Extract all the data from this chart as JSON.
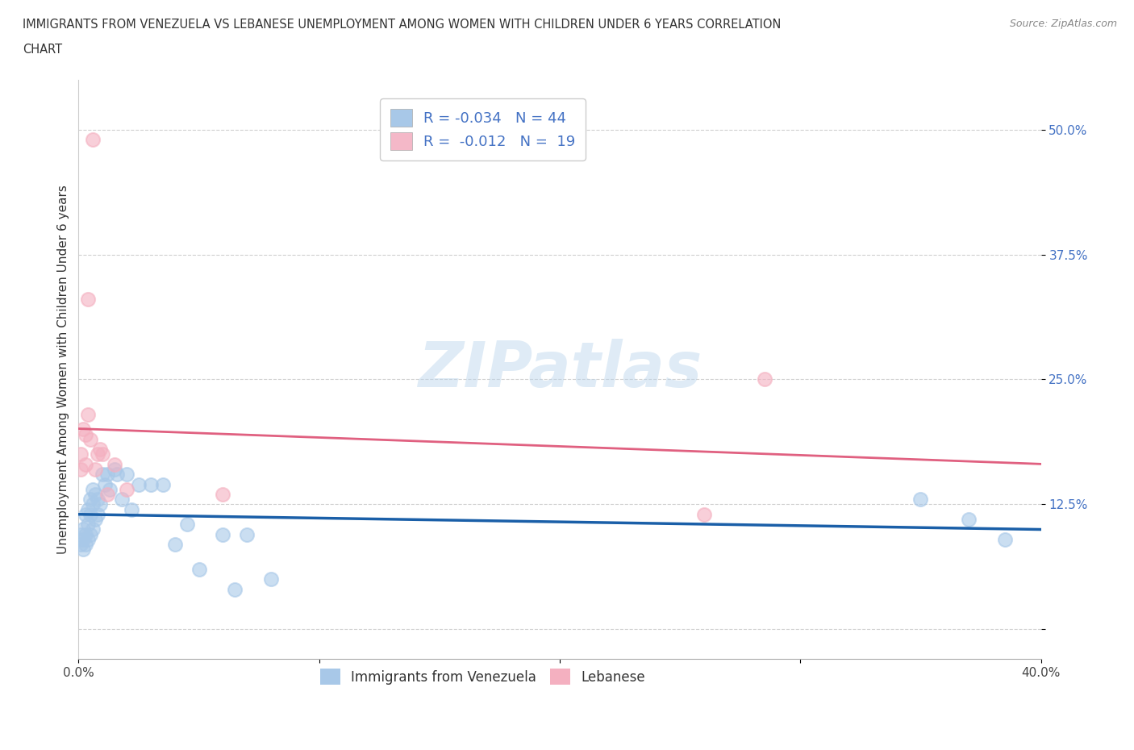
{
  "title_line1": "IMMIGRANTS FROM VENEZUELA VS LEBANESE UNEMPLOYMENT AMONG WOMEN WITH CHILDREN UNDER 6 YEARS CORRELATION",
  "title_line2": "CHART",
  "source": "Source: ZipAtlas.com",
  "ylabel": "Unemployment Among Women with Children Under 6 years",
  "xlim": [
    0.0,
    0.4
  ],
  "ylim": [
    -0.03,
    0.55
  ],
  "xticks": [
    0.0,
    0.1,
    0.2,
    0.3,
    0.4
  ],
  "xticklabels_ends": [
    "0.0%",
    "",
    "",
    "",
    "40.0%"
  ],
  "yticks": [
    0.0,
    0.125,
    0.25,
    0.375,
    0.5
  ],
  "yticklabels": [
    "",
    "12.5%",
    "25.0%",
    "37.5%",
    "50.0%"
  ],
  "legend1_label": "R = -0.034   N = 44",
  "legend2_label": "R =  -0.012   N =  19",
  "legend_color1": "#a8c8e8",
  "legend_color2": "#f4b8c8",
  "dot_color_blue": "#a8c8e8",
  "dot_color_pink": "#f4b0c0",
  "line_color_blue": "#1a5fa8",
  "line_color_pink": "#e06080",
  "grid_color": "#d0d0d0",
  "watermark": "ZIPatlas",
  "venezuelan_x": [
    0.001,
    0.001,
    0.002,
    0.002,
    0.002,
    0.003,
    0.003,
    0.003,
    0.004,
    0.004,
    0.004,
    0.005,
    0.005,
    0.005,
    0.006,
    0.006,
    0.006,
    0.007,
    0.007,
    0.008,
    0.008,
    0.009,
    0.01,
    0.011,
    0.012,
    0.013,
    0.015,
    0.016,
    0.018,
    0.02,
    0.022,
    0.025,
    0.03,
    0.035,
    0.04,
    0.045,
    0.05,
    0.06,
    0.065,
    0.07,
    0.08,
    0.35,
    0.37,
    0.385
  ],
  "venezuelan_y": [
    0.095,
    0.085,
    0.1,
    0.09,
    0.08,
    0.115,
    0.095,
    0.085,
    0.12,
    0.105,
    0.09,
    0.13,
    0.115,
    0.095,
    0.14,
    0.125,
    0.1,
    0.135,
    0.11,
    0.13,
    0.115,
    0.125,
    0.155,
    0.145,
    0.155,
    0.14,
    0.16,
    0.155,
    0.13,
    0.155,
    0.12,
    0.145,
    0.145,
    0.145,
    0.085,
    0.105,
    0.06,
    0.095,
    0.04,
    0.095,
    0.05,
    0.13,
    0.11,
    0.09
  ],
  "lebanese_x": [
    0.001,
    0.001,
    0.002,
    0.003,
    0.003,
    0.004,
    0.004,
    0.005,
    0.006,
    0.007,
    0.008,
    0.009,
    0.01,
    0.012,
    0.015,
    0.02,
    0.06,
    0.26,
    0.285
  ],
  "lebanese_y": [
    0.175,
    0.16,
    0.2,
    0.195,
    0.165,
    0.215,
    0.33,
    0.19,
    0.49,
    0.16,
    0.175,
    0.18,
    0.175,
    0.135,
    0.165,
    0.14,
    0.135,
    0.115,
    0.25
  ]
}
